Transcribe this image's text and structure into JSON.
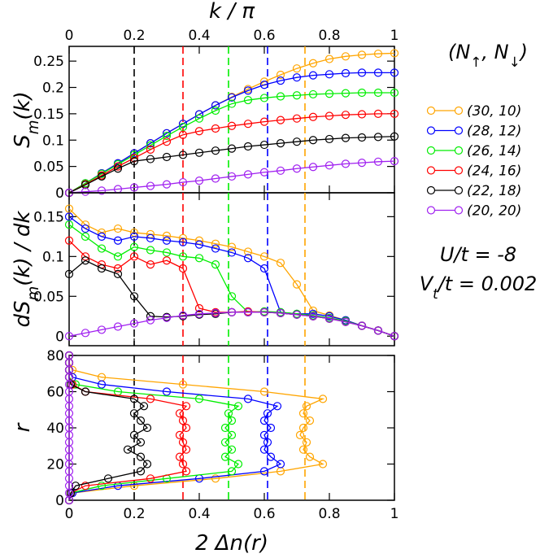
{
  "chart_data": [
    {
      "type": "line",
      "xlabel": "k / π",
      "ylabel": [
        "S",
        "m",
        "(k)"
      ],
      "xlim": [
        0,
        1
      ],
      "xticks": [
        0,
        0.2,
        0.4,
        0.6,
        0.8,
        1
      ],
      "ylim": [
        0,
        0.278
      ],
      "yticks": [
        0,
        0.05,
        0.1,
        0.15,
        0.2,
        0.25
      ],
      "legend_title": [
        "(N",
        "↑",
        ", N",
        "↓",
        ")"
      ],
      "vlines": [
        {
          "x": 0.2,
          "color": "#000000"
        },
        {
          "x": 0.35,
          "color": "#ff0000"
        },
        {
          "x": 0.49,
          "color": "#00ee00"
        },
        {
          "x": 0.61,
          "color": "#0000ff"
        },
        {
          "x": 0.725,
          "color": "#ffa500"
        }
      ],
      "x": [
        0,
        0.05,
        0.1,
        0.15,
        0.2,
        0.25,
        0.3,
        0.35,
        0.4,
        0.45,
        0.5,
        0.55,
        0.6,
        0.65,
        0.7,
        0.75,
        0.8,
        0.85,
        0.9,
        0.95,
        1
      ],
      "series": [
        {
          "name": "(30, 10)",
          "color": "#ffa500",
          "values": [
            0,
            0.018,
            0.037,
            0.056,
            0.075,
            0.094,
            0.113,
            0.131,
            0.149,
            0.166,
            0.182,
            0.197,
            0.211,
            0.224,
            0.236,
            0.246,
            0.254,
            0.259,
            0.262,
            0.264,
            0.265
          ]
        },
        {
          "name": "(28, 12)",
          "color": "#0000ff",
          "values": [
            0,
            0.018,
            0.037,
            0.056,
            0.075,
            0.094,
            0.113,
            0.131,
            0.149,
            0.166,
            0.181,
            0.194,
            0.205,
            0.213,
            0.219,
            0.223,
            0.225,
            0.227,
            0.228,
            0.228,
            0.228
          ]
        },
        {
          "name": "(26, 14)",
          "color": "#00ee00",
          "values": [
            0,
            0.018,
            0.036,
            0.054,
            0.072,
            0.09,
            0.108,
            0.125,
            0.141,
            0.156,
            0.169,
            0.176,
            0.18,
            0.183,
            0.185,
            0.187,
            0.188,
            0.189,
            0.19,
            0.19,
            0.19
          ]
        },
        {
          "name": "(24, 16)",
          "color": "#ff0000",
          "values": [
            0,
            0.016,
            0.033,
            0.05,
            0.066,
            0.082,
            0.097,
            0.11,
            0.117,
            0.122,
            0.127,
            0.131,
            0.135,
            0.138,
            0.141,
            0.144,
            0.146,
            0.148,
            0.149,
            0.15,
            0.15
          ]
        },
        {
          "name": "(22, 18)",
          "color": "#000000",
          "values": [
            0,
            0.015,
            0.031,
            0.046,
            0.06,
            0.064,
            0.068,
            0.072,
            0.076,
            0.08,
            0.084,
            0.088,
            0.091,
            0.094,
            0.097,
            0.1,
            0.102,
            0.104,
            0.105,
            0.106,
            0.107
          ]
        },
        {
          "name": "(20, 20)",
          "color": "#a020f0",
          "values": [
            0,
            0.002,
            0.004,
            0.007,
            0.01,
            0.013,
            0.016,
            0.02,
            0.023,
            0.027,
            0.031,
            0.035,
            0.039,
            0.042,
            0.046,
            0.049,
            0.052,
            0.055,
            0.057,
            0.059,
            0.06
          ]
        }
      ],
      "annotations": [
        [
          "U/t = -8"
        ],
        [
          "V",
          "t",
          "/t = 0.002"
        ]
      ]
    },
    {
      "type": "line",
      "ylabel": [
        "dS",
        "m",
        "(k) / dk"
      ],
      "xlim": [
        0,
        1
      ],
      "xticks": [
        0,
        0.2,
        0.4,
        0.6,
        0.8,
        1
      ],
      "ylim": [
        -0.012,
        0.18
      ],
      "yticks": [
        0,
        0.05,
        0.1,
        0.15
      ],
      "vlines": [
        {
          "x": 0.2,
          "color": "#000000"
        },
        {
          "x": 0.35,
          "color": "#ff0000"
        },
        {
          "x": 0.49,
          "color": "#00ee00"
        },
        {
          "x": 0.61,
          "color": "#0000ff"
        },
        {
          "x": 0.725,
          "color": "#ffa500"
        }
      ],
      "x": [
        0,
        0.05,
        0.1,
        0.15,
        0.2,
        0.25,
        0.3,
        0.35,
        0.4,
        0.45,
        0.5,
        0.55,
        0.6,
        0.65,
        0.7,
        0.75,
        0.8,
        0.85,
        0.9,
        0.95,
        1
      ],
      "series": [
        {
          "color": "#ffa500",
          "values": [
            0.16,
            0.14,
            0.13,
            0.135,
            0.13,
            0.128,
            0.126,
            0.123,
            0.12,
            0.116,
            0.112,
            0.106,
            0.1,
            0.092,
            0.065,
            0.032,
            0.026,
            0.02,
            0.013,
            0.007,
            0
          ]
        },
        {
          "color": "#0000ff",
          "values": [
            0.15,
            0.135,
            0.125,
            0.12,
            0.125,
            0.123,
            0.12,
            0.118,
            0.115,
            0.11,
            0.105,
            0.098,
            0.085,
            0.03,
            0.028,
            0.028,
            0.025,
            0.02,
            0.013,
            0.007,
            0
          ]
        },
        {
          "color": "#00ee00",
          "values": [
            0.14,
            0.125,
            0.11,
            0.1,
            0.112,
            0.108,
            0.105,
            0.1,
            0.098,
            0.09,
            0.05,
            0.03,
            0.031,
            0.03,
            0.028,
            0.026,
            0.023,
            0.019,
            0.013,
            0.007,
            0
          ]
        },
        {
          "color": "#ff0000",
          "values": [
            0.12,
            0.1,
            0.09,
            0.085,
            0.1,
            0.09,
            0.095,
            0.085,
            0.035,
            0.03,
            0.03,
            0.031,
            0.03,
            0.029,
            0.027,
            0.025,
            0.022,
            0.018,
            0.013,
            0.007,
            0
          ]
        },
        {
          "color": "#000000",
          "values": [
            0.078,
            0.095,
            0.085,
            0.078,
            0.05,
            0.025,
            0.024,
            0.025,
            0.027,
            0.028,
            0.03,
            0.03,
            0.03,
            0.029,
            0.027,
            0.025,
            0.022,
            0.018,
            0.013,
            0.007,
            0
          ]
        },
        {
          "color": "#a020f0",
          "values": [
            0,
            0.004,
            0.008,
            0.012,
            0.016,
            0.02,
            0.023,
            0.026,
            0.028,
            0.029,
            0.03,
            0.03,
            0.03,
            0.029,
            0.027,
            0.025,
            0.022,
            0.018,
            0.013,
            0.007,
            0
          ]
        }
      ]
    },
    {
      "type": "line",
      "xlabel": "2 Δn(r)",
      "ylabel": [
        "r"
      ],
      "xlim": [
        0,
        1
      ],
      "xticks": [
        0,
        0.2,
        0.4,
        0.6,
        0.8,
        1
      ],
      "ylim": [
        0,
        80
      ],
      "yticks": [
        0,
        20,
        40,
        60,
        80
      ],
      "vlines": [
        {
          "x": 0.2,
          "color": "#000000"
        },
        {
          "x": 0.35,
          "color": "#ff0000"
        },
        {
          "x": 0.49,
          "color": "#00ee00"
        },
        {
          "x": 0.61,
          "color": "#0000ff"
        },
        {
          "x": 0.725,
          "color": "#ffa500"
        }
      ],
      "series": [
        {
          "color": "#ffa500",
          "x": [
            0,
            0.01,
            0.2,
            0.45,
            0.65,
            0.78,
            0.74,
            0.72,
            0.73,
            0.71,
            0.72,
            0.74,
            0.72,
            0.73,
            0.78,
            0.6,
            0.35,
            0.1,
            0.01,
            0,
            0
          ],
          "values": [
            0,
            4,
            8,
            12,
            16,
            20,
            24,
            28,
            32,
            36,
            40,
            44,
            48,
            52,
            56,
            60,
            64,
            68,
            72,
            76,
            80
          ]
        },
        {
          "color": "#0000ff",
          "x": [
            0,
            0.01,
            0.15,
            0.4,
            0.6,
            0.65,
            0.62,
            0.6,
            0.61,
            0.6,
            0.62,
            0.6,
            0.61,
            0.64,
            0.55,
            0.3,
            0.1,
            0.01,
            0,
            0,
            0
          ],
          "values": [
            0,
            4,
            8,
            12,
            16,
            20,
            24,
            28,
            32,
            36,
            40,
            44,
            48,
            52,
            56,
            60,
            64,
            68,
            72,
            76,
            80
          ]
        },
        {
          "color": "#00ee00",
          "x": [
            0,
            0.005,
            0.1,
            0.3,
            0.5,
            0.52,
            0.48,
            0.5,
            0.48,
            0.5,
            0.48,
            0.5,
            0.49,
            0.52,
            0.4,
            0.15,
            0.02,
            0,
            0,
            0,
            0
          ],
          "values": [
            0,
            4,
            8,
            12,
            16,
            20,
            24,
            28,
            32,
            36,
            40,
            44,
            48,
            52,
            56,
            60,
            64,
            68,
            72,
            76,
            80
          ]
        },
        {
          "color": "#ff0000",
          "x": [
            0,
            0.005,
            0.05,
            0.25,
            0.36,
            0.35,
            0.34,
            0.36,
            0.35,
            0.34,
            0.36,
            0.35,
            0.34,
            0.36,
            0.25,
            0.05,
            0.01,
            0,
            0,
            0,
            0
          ],
          "values": [
            0,
            4,
            8,
            12,
            16,
            20,
            24,
            28,
            32,
            36,
            40,
            44,
            48,
            52,
            56,
            60,
            64,
            68,
            72,
            76,
            80
          ]
        },
        {
          "color": "#000000",
          "x": [
            0,
            0.005,
            0.02,
            0.12,
            0.22,
            0.24,
            0.22,
            0.18,
            0.22,
            0.2,
            0.24,
            0.22,
            0.2,
            0.23,
            0.2,
            0.05,
            0.005,
            0,
            0,
            0,
            0
          ],
          "values": [
            0,
            4,
            8,
            12,
            16,
            20,
            24,
            28,
            32,
            36,
            40,
            44,
            48,
            52,
            56,
            60,
            64,
            68,
            72,
            76,
            80
          ]
        },
        {
          "color": "#a020f0",
          "x": [
            0,
            0,
            0,
            0,
            0,
            0,
            0,
            0,
            0,
            0,
            0,
            0,
            0,
            0,
            0,
            0,
            0,
            0,
            0,
            0,
            0
          ],
          "values": [
            0,
            4,
            8,
            12,
            16,
            20,
            24,
            28,
            32,
            36,
            40,
            44,
            48,
            52,
            56,
            60,
            64,
            68,
            72,
            76,
            80
          ]
        }
      ]
    }
  ]
}
